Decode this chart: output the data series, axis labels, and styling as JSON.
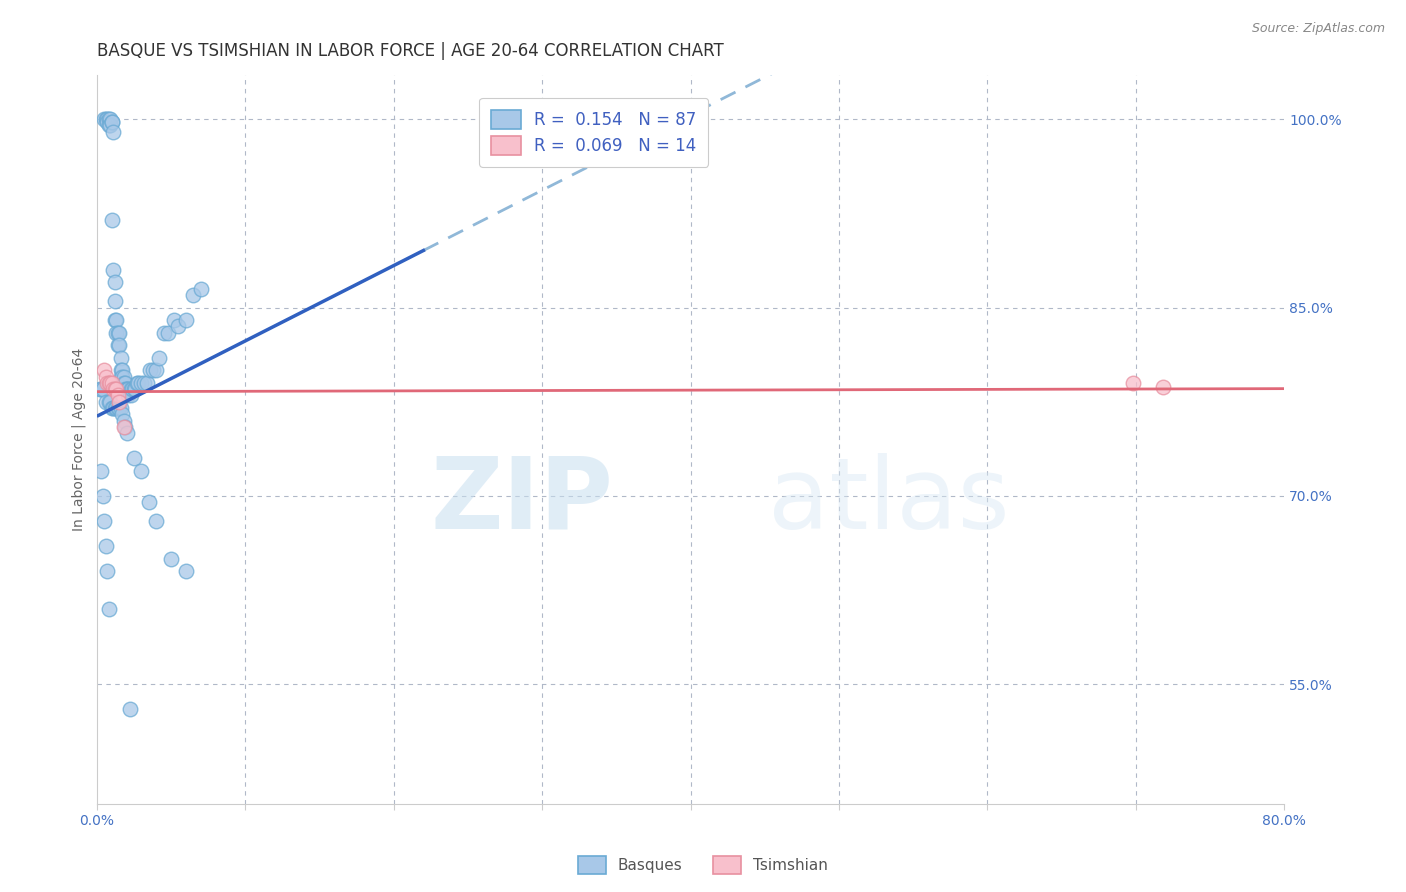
{
  "title": "BASQUE VS TSIMSHIAN IN LABOR FORCE | AGE 20-64 CORRELATION CHART",
  "source_text": "Source: ZipAtlas.com",
  "ylabel": "In Labor Force | Age 20-64",
  "xlim": [
    0.0,
    0.8
  ],
  "ylim": [
    0.455,
    1.035
  ],
  "yticks_right": [
    0.55,
    0.7,
    0.85,
    1.0
  ],
  "yticklabels_right": [
    "55.0%",
    "70.0%",
    "85.0%",
    "100.0%"
  ],
  "blue_scatter_color": "#a8c8e8",
  "blue_edge_color": "#6aaad4",
  "blue_line_color": "#3060c0",
  "blue_dash_color": "#90b8d8",
  "pink_scatter_color": "#f8c0cc",
  "pink_edge_color": "#e890a0",
  "pink_line_color": "#e06878",
  "legend_label1": "R =  0.154   N = 87",
  "legend_label2": "R =  0.069   N = 14",
  "watermark_zip": "ZIP",
  "watermark_atlas": "atlas",
  "title_fontsize": 12,
  "axis_label_fontsize": 10,
  "tick_fontsize": 10,
  "source_fontsize": 9,
  "blue_line_x0": 0.001,
  "blue_line_x_solid_end": 0.22,
  "blue_line_x_dash_end": 0.8,
  "blue_line_y0": 0.764,
  "blue_line_slope": 0.6,
  "pink_line_x0": 0.001,
  "pink_line_x_end": 0.8,
  "pink_line_y0": 0.783,
  "pink_line_slope": 0.003,
  "basque_x": [
    0.005,
    0.006,
    0.007,
    0.007,
    0.008,
    0.008,
    0.009,
    0.009,
    0.01,
    0.01,
    0.01,
    0.011,
    0.011,
    0.012,
    0.012,
    0.012,
    0.013,
    0.013,
    0.014,
    0.014,
    0.015,
    0.015,
    0.016,
    0.016,
    0.016,
    0.017,
    0.017,
    0.018,
    0.018,
    0.019,
    0.019,
    0.02,
    0.02,
    0.021,
    0.021,
    0.022,
    0.023,
    0.023,
    0.024,
    0.025,
    0.026,
    0.027,
    0.028,
    0.03,
    0.032,
    0.034,
    0.036,
    0.038,
    0.04,
    0.042,
    0.045,
    0.048,
    0.052,
    0.055,
    0.06,
    0.065,
    0.07,
    0.002,
    0.003,
    0.004,
    0.006,
    0.008,
    0.009,
    0.01,
    0.011,
    0.012,
    0.013,
    0.014,
    0.015,
    0.016,
    0.017,
    0.018,
    0.019,
    0.02,
    0.025,
    0.03,
    0.035,
    0.04,
    0.05,
    0.06,
    0.003,
    0.004,
    0.005,
    0.006,
    0.007,
    0.008,
    0.022
  ],
  "basque_y": [
    1.0,
    1.0,
    1.0,
    0.998,
    1.0,
    0.995,
    1.0,
    0.995,
    0.998,
    0.998,
    0.92,
    0.99,
    0.88,
    0.87,
    0.855,
    0.84,
    0.84,
    0.83,
    0.83,
    0.82,
    0.83,
    0.82,
    0.81,
    0.8,
    0.795,
    0.8,
    0.795,
    0.795,
    0.79,
    0.79,
    0.785,
    0.785,
    0.785,
    0.785,
    0.78,
    0.783,
    0.785,
    0.78,
    0.785,
    0.785,
    0.785,
    0.79,
    0.79,
    0.79,
    0.79,
    0.79,
    0.8,
    0.8,
    0.8,
    0.81,
    0.83,
    0.83,
    0.84,
    0.835,
    0.84,
    0.86,
    0.865,
    0.785,
    0.785,
    0.785,
    0.775,
    0.775,
    0.775,
    0.77,
    0.77,
    0.77,
    0.77,
    0.77,
    0.77,
    0.77,
    0.765,
    0.76,
    0.755,
    0.75,
    0.73,
    0.72,
    0.695,
    0.68,
    0.65,
    0.64,
    0.72,
    0.7,
    0.68,
    0.66,
    0.64,
    0.61,
    0.53
  ],
  "tsimshian_x": [
    0.005,
    0.006,
    0.007,
    0.008,
    0.009,
    0.01,
    0.011,
    0.012,
    0.013,
    0.014,
    0.015,
    0.018,
    0.698,
    0.718
  ],
  "tsimshian_y": [
    0.8,
    0.795,
    0.79,
    0.79,
    0.79,
    0.79,
    0.785,
    0.785,
    0.785,
    0.78,
    0.775,
    0.755,
    0.79,
    0.787
  ]
}
